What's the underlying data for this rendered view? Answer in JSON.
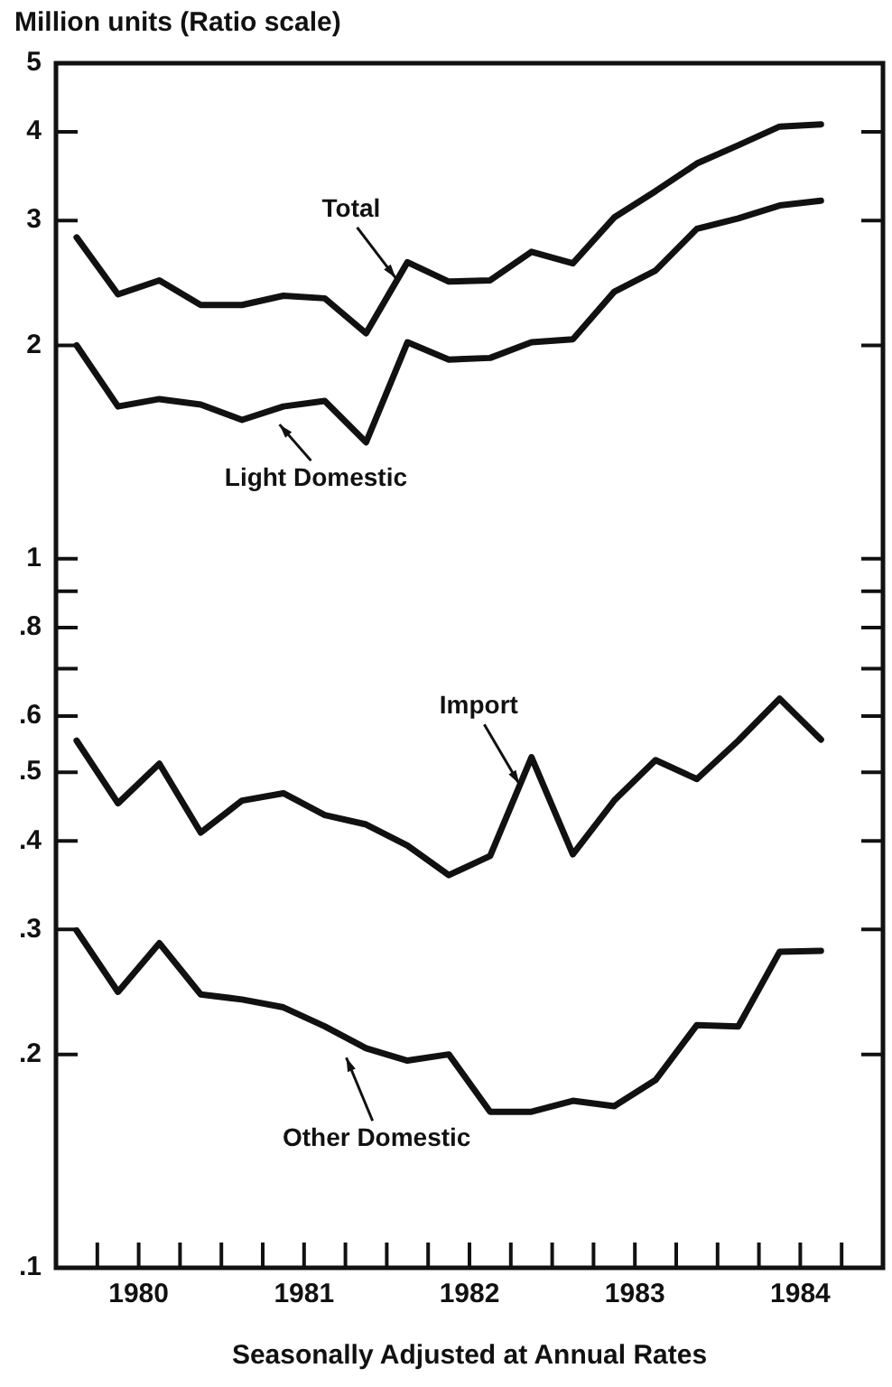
{
  "chart_data": {
    "type": "line",
    "ylabel": "Million units (Ratio scale)",
    "xlabel": "Seasonally Adjusted at Annual Rates",
    "x": [
      1980.125,
      1980.375,
      1980.625,
      1980.875,
      1981.125,
      1981.375,
      1981.625,
      1981.875,
      1982.125,
      1982.375,
      1982.625,
      1982.875,
      1983.125,
      1983.375,
      1983.625,
      1983.875,
      1984.125,
      1984.375,
      1984.625
    ],
    "series": [
      {
        "name": "Total",
        "color": "#111111",
        "values": [
          2.84,
          2.36,
          2.47,
          2.28,
          2.28,
          2.35,
          2.33,
          2.08,
          2.62,
          2.46,
          2.47,
          2.71,
          2.61,
          3.03,
          3.3,
          3.61,
          3.83,
          4.07,
          4.1
        ]
      },
      {
        "name": "Light Domestic",
        "color": "#111111",
        "values": [
          2.0,
          1.64,
          1.68,
          1.65,
          1.57,
          1.64,
          1.67,
          1.46,
          2.02,
          1.91,
          1.92,
          2.02,
          2.04,
          2.38,
          2.55,
          2.92,
          3.02,
          3.15,
          3.2
        ]
      },
      {
        "name": "Import",
        "color": "#111111",
        "values": [
          0.554,
          0.452,
          0.514,
          0.411,
          0.456,
          0.467,
          0.435,
          0.422,
          0.394,
          0.358,
          0.381,
          0.525,
          0.383,
          0.456,
          0.52,
          0.489,
          0.554,
          0.635,
          0.556
        ]
      },
      {
        "name": "Other Domestic",
        "color": "#111111",
        "values": [
          0.299,
          0.245,
          0.287,
          0.243,
          0.239,
          0.233,
          0.219,
          0.204,
          0.196,
          0.2,
          0.166,
          0.166,
          0.172,
          0.169,
          0.184,
          0.22,
          0.219,
          0.279,
          0.28
        ]
      }
    ],
    "log": "y",
    "ylim": [
      0.1,
      5
    ],
    "yticks": [
      {
        "value": 0.1,
        "label": ".1"
      },
      {
        "value": 0.2,
        "label": ".2"
      },
      {
        "value": 0.3,
        "label": ".3"
      },
      {
        "value": 0.4,
        "label": ".4"
      },
      {
        "value": 0.5,
        "label": ".5"
      },
      {
        "value": 0.6,
        "label": ".6"
      },
      {
        "value": 0.7,
        "label": null
      },
      {
        "value": 0.8,
        "label": ".8"
      },
      {
        "value": 0.9,
        "label": null
      },
      1,
      2,
      3,
      4,
      5
    ],
    "xlim": [
      1980,
      1985
    ],
    "xticks": [
      {
        "value": 1980.25,
        "label": null
      },
      {
        "value": 1980.5,
        "label": "1980"
      },
      {
        "value": 1980.75,
        "label": null
      },
      {
        "value": 1981,
        "label": null
      },
      {
        "value": 1981.25,
        "label": null
      },
      {
        "value": 1981.5,
        "label": "1981"
      },
      {
        "value": 1981.75,
        "label": null
      },
      {
        "value": 1982,
        "label": null
      },
      {
        "value": 1982.25,
        "label": null
      },
      {
        "value": 1982.5,
        "label": "1982"
      },
      {
        "value": 1982.75,
        "label": null
      },
      {
        "value": 1983,
        "label": null
      },
      {
        "value": 1983.25,
        "label": null
      },
      {
        "value": 1983.5,
        "label": "1983"
      },
      {
        "value": 1983.75,
        "label": null
      },
      {
        "value": 1984,
        "label": null
      },
      {
        "value": 1984.25,
        "label": null
      },
      {
        "value": 1984.5,
        "label": "1984"
      },
      {
        "value": 1984.75,
        "label": null
      }
    ],
    "grid": false,
    "marker": "none",
    "line_style": "solid"
  }
}
